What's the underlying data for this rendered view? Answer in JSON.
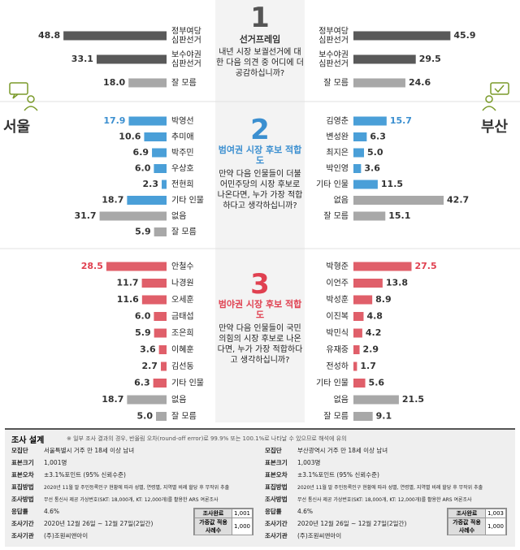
{
  "colors": {
    "dark": "#595959",
    "blue": "#4a9fd8",
    "gray": "#a8a8a8",
    "red": "#e05f6a",
    "num_blue": "#3b8fd0",
    "num_red": "#e04050"
  },
  "cities": {
    "left": "서울",
    "right": "부산"
  },
  "icons": {
    "left": "chat-person-icon",
    "right": "check-person-icon"
  },
  "center": [
    {
      "num": "1",
      "title": "선거프레임",
      "question": "내년 시장 보궐선거에 대한 다음 의견 중 어디에 더 공감하십니까?"
    },
    {
      "num": "2",
      "title": "범여권 시장 후보 적합도",
      "question": "만약 다음 인물들이 더불어민주당의 시장 후보로 나온다면, 누가 가장 적합하다고 생각하십니까?"
    },
    {
      "num": "3",
      "title": "범야권 시장 후보 적합도",
      "question": "만약 다음 인물들이 국민의힘의 시장 후보로 나온다면, 누가 가장 적합하다고 생각하십니까?"
    }
  ],
  "chart_data": [
    {
      "type": "bar",
      "region": "서울",
      "section": "1",
      "categories": [
        "정부여당 심판선거",
        "보수야권 심판선거",
        "잘 모름"
      ],
      "values": [
        48.8,
        33.1,
        18.0
      ],
      "colors": [
        "dark",
        "dark",
        "gray"
      ]
    },
    {
      "type": "bar",
      "region": "부산",
      "section": "1",
      "categories": [
        "정부여당 심판선거",
        "보수야권 심판선거",
        "잘 모름"
      ],
      "values": [
        45.9,
        29.5,
        24.6
      ],
      "colors": [
        "dark",
        "dark",
        "gray"
      ]
    },
    {
      "type": "bar",
      "region": "서울",
      "section": "2",
      "categories": [
        "박영선",
        "추미애",
        "박주민",
        "우상호",
        "전현희",
        "기타 인물",
        "없음",
        "잘 모름"
      ],
      "values": [
        17.9,
        10.6,
        6.9,
        6.0,
        2.3,
        18.7,
        31.7,
        5.9
      ],
      "colors": [
        "blue",
        "blue",
        "blue",
        "blue",
        "blue",
        "blue",
        "gray",
        "gray"
      ]
    },
    {
      "type": "bar",
      "region": "부산",
      "section": "2",
      "categories": [
        "김영춘",
        "변성완",
        "최지은",
        "박인영",
        "기타 인물",
        "없음",
        "잘 모름"
      ],
      "values": [
        15.7,
        6.3,
        5.0,
        3.6,
        11.5,
        42.7,
        15.1
      ],
      "colors": [
        "blue",
        "blue",
        "blue",
        "blue",
        "blue",
        "gray",
        "gray"
      ]
    },
    {
      "type": "bar",
      "region": "서울",
      "section": "3",
      "categories": [
        "안철수",
        "나경원",
        "오세훈",
        "금태섭",
        "조은희",
        "이혜훈",
        "김선동",
        "기타 인물",
        "없음",
        "잘 모름"
      ],
      "values": [
        28.5,
        11.7,
        11.6,
        6.0,
        5.9,
        3.6,
        2.7,
        6.3,
        18.7,
        5.0
      ],
      "colors": [
        "red",
        "red",
        "red",
        "red",
        "red",
        "red",
        "red",
        "red",
        "gray",
        "gray"
      ]
    },
    {
      "type": "bar",
      "region": "부산",
      "section": "3",
      "categories": [
        "박형준",
        "이언주",
        "박성훈",
        "이진복",
        "박민식",
        "유재중",
        "전성하",
        "기타 인물",
        "없음",
        "잘 모름"
      ],
      "values": [
        27.5,
        13.8,
        8.9,
        4.8,
        4.2,
        2.9,
        1.7,
        5.6,
        21.5,
        9.1
      ],
      "colors": [
        "red",
        "red",
        "red",
        "red",
        "red",
        "red",
        "red",
        "red",
        "gray",
        "gray"
      ]
    }
  ],
  "survey": {
    "title": "조사 설계",
    "note": "※ 일부 조사 결과의 경우, 반올림 오차(round-off error)로 99.9% 또는 100.1%로 나타날 수 있으므로 해석에 유의",
    "left": [
      {
        "k": "모집단",
        "v": "서울특별시 거주 만 18세 이상 남녀"
      },
      {
        "k": "표본크기",
        "v": "1,001명"
      },
      {
        "k": "표본오차",
        "v": "±3.1%포인트 (95% 신뢰수준)"
      },
      {
        "k": "표집방법",
        "v": "2020년 11월 말 주민등록인구 현황에 따라 성별, 연령별, 지역별 비례 할당 후 무작위 추출"
      },
      {
        "k": "조사방법",
        "v": "무선 통신사 제공 가상번호(SKT: 18,000개, KT: 12,000개)를 활용한 ARS 여론조사"
      },
      {
        "k": "응답률",
        "v": "4.6%"
      },
      {
        "k": "조사기간",
        "v": "2020년 12월 26일 ~ 12월 27일(2일간)"
      },
      {
        "k": "조사기관",
        "v": "(주)조원씨앤아이"
      }
    ],
    "right": [
      {
        "k": "모집단",
        "v": "부산광역시 거주 만 18세 이상 남녀"
      },
      {
        "k": "표본크기",
        "v": "1,003명"
      },
      {
        "k": "표본오차",
        "v": "±3.1%포인트 (95% 신뢰수준)"
      },
      {
        "k": "표집방법",
        "v": "2020년 11월 말 주민등록인구 현황에 따라 성별, 연령별, 지역별 비례 할당 후 무작위 추출"
      },
      {
        "k": "조사방법",
        "v": "무선 통신사 제공 가상번호(SKT: 18,000개, KT: 12,000개)를 활용한 ARS 여론조사"
      },
      {
        "k": "응답률",
        "v": "4.6%"
      },
      {
        "k": "조사기간",
        "v": "2020년 12월 26일 ~ 12월 27일(2일간)"
      },
      {
        "k": "조사기관",
        "v": "(주)조원씨앤아이"
      }
    ],
    "box_left": [
      {
        "k": "조사완료",
        "v": "1,001"
      },
      {
        "k": "가중값 적용 사례수",
        "v": "1,000"
      }
    ],
    "box_right": [
      {
        "k": "조사완료",
        "v": "1,003"
      },
      {
        "k": "가중값 적용 사례수",
        "v": "1,000"
      }
    ]
  }
}
